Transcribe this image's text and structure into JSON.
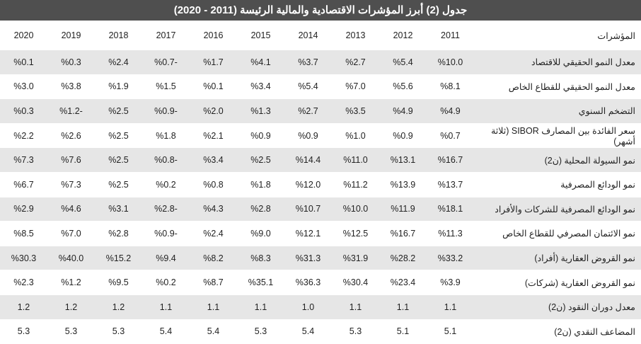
{
  "header": {
    "title": "جدول (2) أبرز المؤشرات الاقتصادية والمالية الرئيسة (2011 - 2020)"
  },
  "table": {
    "columns": [
      "المؤشرات",
      "2011",
      "2012",
      "2013",
      "2014",
      "2015",
      "2016",
      "2017",
      "2018",
      "2019",
      "2020"
    ],
    "rows": [
      [
        "معدل النمو الحقيقي للاقتصاد",
        "%10.0",
        "%5.4",
        "%2.7",
        "%3.7",
        "%4.1",
        "%1.7",
        "%0.7-",
        "%2.4",
        "%0.3",
        "%0.1"
      ],
      [
        "معدل النمو الحقيقي للقطاع الخاص",
        "%8.1",
        "%5.6",
        "%7.0",
        "%5.4",
        "%3.4",
        "%0.1",
        "%1.5",
        "%1.9",
        "%3.8",
        "%3.0"
      ],
      [
        "التضخم السنوي",
        "%4.9",
        "%4.9",
        "%3.5",
        "%2.7",
        "%1.3",
        "%2.0",
        "%0.9-",
        "%2.5",
        "%1.2-",
        "%0.3"
      ],
      [
        "سعر الفائدة بين المصارف SIBOR (ثلاثة أشهر)",
        "%0.7",
        "%0.9",
        "%1.0",
        "%0.9",
        "%0.9",
        "%2.1",
        "%1.8",
        "%2.5",
        "%2.6",
        "%2.2"
      ],
      [
        "نمو السيولة المحلية (ن2)",
        "%16.7",
        "%13.1",
        "%11.0",
        "%14.4",
        "%2.5",
        "%3.4",
        "%0.8-",
        "%2.5",
        "%7.6",
        "%7.3"
      ],
      [
        "نمو الودائع المصرفية",
        "%13.7",
        "%13.9",
        "%11.2",
        "%12.0",
        "%1.8",
        "%0.8",
        "%0.2",
        "%2.5",
        "%7.3",
        "%6.7"
      ],
      [
        "نمو الودائع المصرفية للشركات والأفراد",
        "%18.1",
        "%11.9",
        "%10.0",
        "%10.7",
        "%2.8",
        "%4.3",
        "%2.8-",
        "%3.1",
        "%4.6",
        "%2.9"
      ],
      [
        "نمو الائتمان المصرفي للقطاع الخاص",
        "%11.3",
        "%16.7",
        "%12.5",
        "%12.1",
        "%9.0",
        "%2.4",
        "%0.9-",
        "%2.8",
        "%7.0",
        "%8.5"
      ],
      [
        "نمو القروض العقارية (أفراد)",
        "%33.2",
        "%28.2",
        "%31.9",
        "%31.3",
        "%8.3",
        "%8.2",
        "%9.4",
        "%15.2",
        "%40.0",
        "%30.3"
      ],
      [
        "نمو القروض العقارية (شركات)",
        "%3.9",
        "%23.4",
        "%30.4",
        "%36.3",
        "%35.1",
        "%8.7",
        "%0.2",
        "%9.5",
        "%1.2",
        "%2.3"
      ],
      [
        "معدل دوران النقود (ن2)",
        "1.1",
        "1.1",
        "1.1",
        "1.0",
        "1.1",
        "1.1",
        "1.1",
        "1.2",
        "1.2",
        "1.2"
      ],
      [
        "المضاعف النقدي (ن2)",
        "5.1",
        "5.1",
        "5.3",
        "5.4",
        "5.3",
        "5.4",
        "5.4",
        "5.3",
        "5.3",
        "5.3"
      ]
    ]
  }
}
